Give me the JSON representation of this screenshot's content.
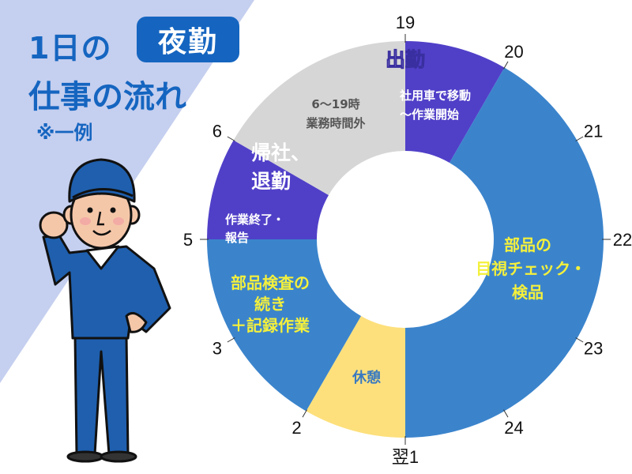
{
  "header": {
    "title_line1": "1日の",
    "badge": "夜勤",
    "title_line2": "仕事の流れ",
    "note": "※一例"
  },
  "colors": {
    "title_blue": "#1565c0",
    "background_band": "#c5cfef",
    "purple": "#5040c8",
    "blue": "#3b84cc",
    "gray": "#d6d6d6",
    "yellow": "#fde07c",
    "label_yellow": "#f4f03c"
  },
  "chart_data": {
    "type": "pie",
    "variant": "donut-clock",
    "title": "1日の夜勤 仕事の流れ",
    "segments": [
      {
        "start": 19,
        "end": 20,
        "color": "purple",
        "labels": [
          "出勤",
          "社用車で移動",
          "〜作業開始"
        ]
      },
      {
        "start": 20,
        "end": 25,
        "color": "blue",
        "labels": [
          "部品の",
          "目視チェック・",
          "検品"
        ]
      },
      {
        "start": 25,
        "end": 26,
        "color": "yellow",
        "labels": [
          "休憩"
        ]
      },
      {
        "start": 26,
        "end": 29,
        "color": "blue",
        "labels": [
          "部品検査の",
          "続き",
          "＋記録作業"
        ]
      },
      {
        "start": 29,
        "end": 30,
        "color": "purple",
        "labels": [
          "作業終了・",
          "報告",
          "帰社、",
          "退勤"
        ]
      },
      {
        "start": 30,
        "end": 43,
        "color": "gray",
        "labels": [
          "6〜19時",
          "業務時間外"
        ]
      }
    ],
    "ticks": [
      {
        "hour": 19,
        "label": "19"
      },
      {
        "hour": 20,
        "label": "20"
      },
      {
        "hour": 21,
        "label": "21"
      },
      {
        "hour": 22,
        "label": "22"
      },
      {
        "hour": 23,
        "label": "23"
      },
      {
        "hour": 24,
        "label": "24"
      },
      {
        "hour": 25,
        "label": "翌1"
      },
      {
        "hour": 26,
        "label": "2"
      },
      {
        "hour": 27,
        "label": "3"
      },
      {
        "hour": 29,
        "label": "5"
      },
      {
        "hour": 30,
        "label": "6"
      }
    ]
  }
}
